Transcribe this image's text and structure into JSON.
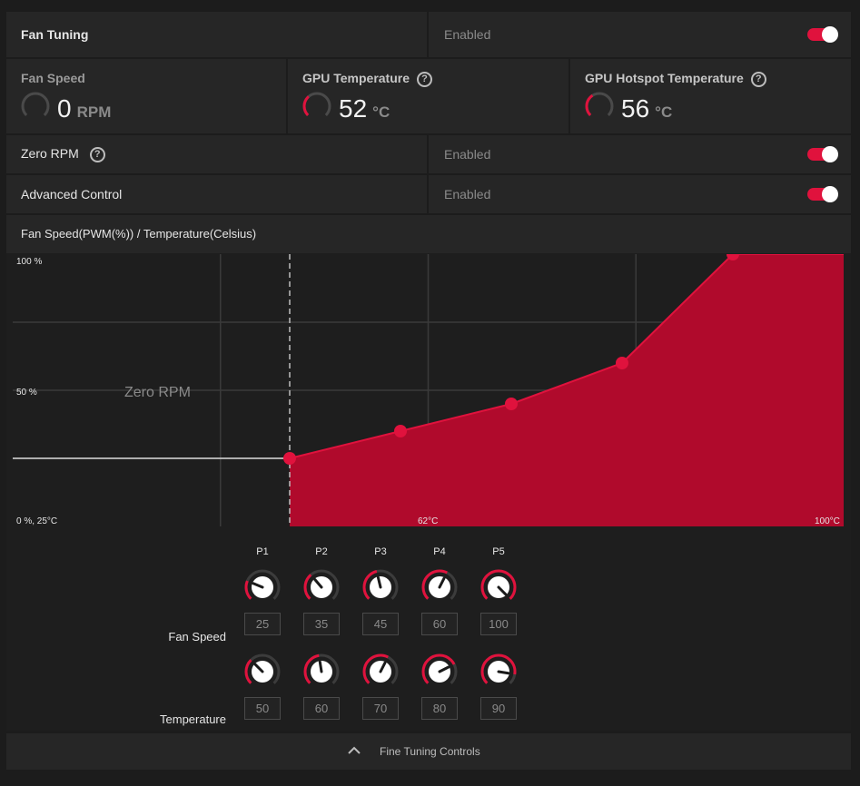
{
  "fan_tuning": {
    "label": "Fan Tuning",
    "state": "Enabled",
    "enabled": true
  },
  "metrics": [
    {
      "title": "Fan Speed",
      "value": "0",
      "unit": "RPM",
      "has_help": false,
      "gauge_fraction": 0.0
    },
    {
      "title": "GPU Temperature",
      "value": "52",
      "unit": "°C",
      "has_help": true,
      "gauge_fraction": 0.35
    },
    {
      "title": "GPU Hotspot Temperature",
      "value": "56",
      "unit": "°C",
      "has_help": true,
      "gauge_fraction": 0.38
    }
  ],
  "zero_rpm": {
    "label": "Zero RPM",
    "state": "Enabled",
    "enabled": true
  },
  "advanced_control": {
    "label": "Advanced Control",
    "state": "Enabled",
    "enabled": true
  },
  "curve_header": "Fan Speed(PWM(%)) / Temperature(Celsius)",
  "chart_data": {
    "type": "area",
    "x": [
      50,
      60,
      70,
      80,
      90
    ],
    "values": [
      25,
      35,
      45,
      60,
      100
    ],
    "xlim": [
      25,
      100
    ],
    "ylim": [
      0,
      100
    ],
    "zero_rpm_below": 50,
    "zero_rpm_label": "Zero RPM",
    "y_ticks": [
      "100 %",
      "50 %",
      "0 %, 25°C"
    ],
    "x_ticks": [
      "62°C",
      "100°C"
    ],
    "fill_color": "#b00a2c",
    "line_color": "#e0123d",
    "point_color": "#e0123d"
  },
  "controls": {
    "points": [
      "P1",
      "P2",
      "P3",
      "P4",
      "P5"
    ],
    "fan_speed_label": "Fan Speed",
    "temperature_label": "Temperature",
    "fan_speed": [
      "25",
      "35",
      "45",
      "60",
      "100"
    ],
    "temperature": [
      "50",
      "60",
      "70",
      "80",
      "90"
    ]
  },
  "footer": {
    "label": "Fine Tuning Controls",
    "icon": "chevron-up-icon"
  },
  "colors": {
    "accent": "#e0123d",
    "panel": "#262626",
    "background": "#1c1c1c"
  }
}
